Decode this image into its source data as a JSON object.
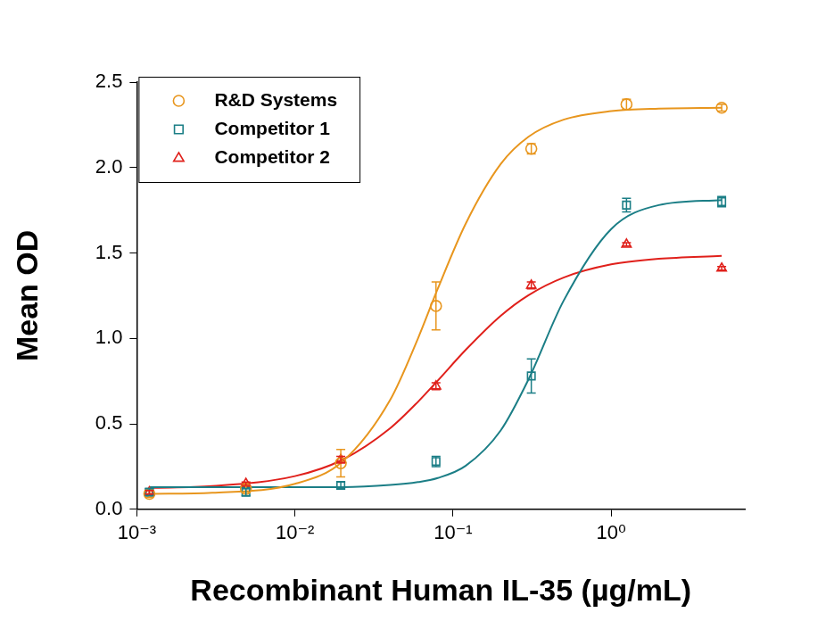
{
  "chart_data": {
    "type": "scatter",
    "x_label": "Recombinant Human IL-35 (µg/mL)",
    "y_label": "Mean OD",
    "log": "x",
    "grid": false,
    "legend": "upper left",
    "xlim": [
      0.001,
      7
    ],
    "ylim": [
      0,
      2.5
    ],
    "xticks": [
      {
        "value": 0.001,
        "label": "10⁻³"
      },
      {
        "value": 0.01,
        "label": "10⁻²"
      },
      {
        "value": 0.1,
        "label": "10⁻¹"
      },
      {
        "value": 1,
        "label": "10⁰"
      }
    ],
    "yticks": [
      {
        "value": 0,
        "label": "0.0"
      },
      0.5,
      {
        "value": 1,
        "label": "1.0"
      },
      1.5,
      {
        "value": 2,
        "label": "2.0"
      },
      2.5
    ],
    "x": [
      0.0012,
      0.0049,
      0.0195,
      0.078,
      0.3125,
      1.25,
      5
    ],
    "series": [
      {
        "name": "R&D Systems",
        "color": "#e8961e",
        "marker": "circle",
        "values": [
          0.09,
          0.12,
          0.27,
          1.19,
          2.11,
          2.37,
          2.35
        ],
        "errors": [
          0.02,
          0.02,
          0.08,
          0.14,
          0.03,
          0.03,
          0.02
        ],
        "curve": {
          "x": [
            0.0012,
            0.003,
            0.01,
            0.02,
            0.04,
            0.06,
            0.08,
            0.12,
            0.2,
            0.3,
            0.5,
            1,
            2,
            5
          ],
          "y": [
            0.09,
            0.097,
            0.149,
            0.28,
            0.64,
            1.0,
            1.29,
            1.67,
            2.02,
            2.18,
            2.28,
            2.33,
            2.345,
            2.35
          ]
        }
      },
      {
        "name": "Competitor 1",
        "color": "#1b7e86",
        "marker": "square",
        "values": [
          0.1,
          0.1,
          0.14,
          0.28,
          0.78,
          1.78,
          1.8
        ],
        "errors": [
          0.02,
          0.02,
          0.02,
          0.03,
          0.1,
          0.04,
          0.03
        ],
        "curve": {
          "x": [
            0.0012,
            0.003,
            0.01,
            0.02,
            0.04,
            0.06,
            0.08,
            0.12,
            0.2,
            0.3,
            0.5,
            1,
            2,
            5
          ],
          "y": [
            0.13,
            0.13,
            0.13,
            0.13,
            0.142,
            0.159,
            0.183,
            0.254,
            0.461,
            0.76,
            1.22,
            1.64,
            1.78,
            1.81
          ]
        }
      },
      {
        "name": "Competitor 2",
        "color": "#e0201b",
        "marker": "triangle",
        "values": [
          0.1,
          0.15,
          0.29,
          0.72,
          1.31,
          1.55,
          1.41
        ],
        "errors": [
          0.01,
          0.01,
          0.02,
          0.02,
          0.02,
          0.01,
          0.01
        ],
        "curve": {
          "x": [
            0.0012,
            0.003,
            0.01,
            0.02,
            0.04,
            0.06,
            0.08,
            0.12,
            0.2,
            0.3,
            0.5,
            1,
            2,
            5
          ],
          "y": [
            0.125,
            0.136,
            0.194,
            0.29,
            0.474,
            0.629,
            0.753,
            0.932,
            1.132,
            1.253,
            1.356,
            1.433,
            1.466,
            1.483
          ]
        }
      }
    ]
  }
}
